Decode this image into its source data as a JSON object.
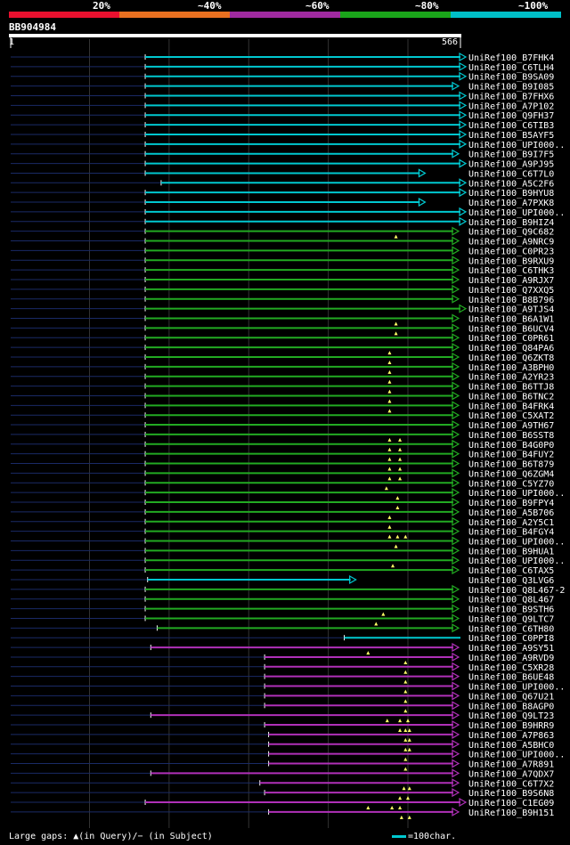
{
  "query": {
    "id": "BB904984",
    "start": "1",
    "end": "566",
    "length": 566
  },
  "scale": [
    {
      "label": "20%",
      "color": "#e8102e"
    },
    {
      "label": "~40%",
      "color": "#e87020"
    },
    {
      "label": "~60%",
      "color": "#a02aa0"
    },
    {
      "label": "~80%",
      "color": "#1aa51a"
    },
    {
      "label": "~100%",
      "color": "#00c0c8"
    }
  ],
  "footer": {
    "gaps_text": "Large gaps: ▲(in Query)/− (in Subject)",
    "scale_text": "=100char."
  },
  "chart_data": {
    "type": "alignment",
    "x_range": [
      1,
      566
    ],
    "hits": [
      {
        "name": "UniRef100_B7FHK4",
        "start": 170,
        "end": 566,
        "cls": "c",
        "arrow": true
      },
      {
        "name": "UniRef100_C6TLH4",
        "start": 170,
        "end": 566,
        "cls": "c",
        "arrow": true
      },
      {
        "name": "UniRef100_B9SA09",
        "start": 170,
        "end": 566,
        "cls": "c",
        "arrow": true
      },
      {
        "name": "UniRef100_B9I085",
        "start": 170,
        "end": 557,
        "cls": "c",
        "arrow": true
      },
      {
        "name": "UniRef100_B7FHX6",
        "start": 170,
        "end": 566,
        "cls": "c",
        "arrow": true
      },
      {
        "name": "UniRef100_A7P102",
        "start": 170,
        "end": 566,
        "cls": "c",
        "arrow": true
      },
      {
        "name": "UniRef100_Q9FH37",
        "start": 170,
        "end": 566,
        "cls": "c",
        "arrow": true
      },
      {
        "name": "UniRef100_C6TIB3",
        "start": 170,
        "end": 566,
        "cls": "c",
        "arrow": true
      },
      {
        "name": "UniRef100_B5AYF5",
        "start": 170,
        "end": 566,
        "cls": "c",
        "arrow": true
      },
      {
        "name": "UniRef100_UPI000..",
        "start": 170,
        "end": 566,
        "cls": "c",
        "arrow": true
      },
      {
        "name": "UniRef100_B9I7F5",
        "start": 170,
        "end": 557,
        "cls": "c",
        "arrow": true
      },
      {
        "name": "UniRef100_A9PJ95",
        "start": 170,
        "end": 566,
        "cls": "c",
        "arrow": true
      },
      {
        "name": "UniRef100_C6T7L0",
        "start": 170,
        "end": 515,
        "cls": "c",
        "arrow": true
      },
      {
        "name": "UniRef100_A5C2F6",
        "start": 190,
        "end": 566,
        "cls": "c",
        "arrow": true
      },
      {
        "name": "UniRef100_B9HYU8",
        "start": 170,
        "end": 566,
        "cls": "c",
        "arrow": true
      },
      {
        "name": "UniRef100_A7PXK8",
        "start": 170,
        "end": 515,
        "cls": "c",
        "arrow": true
      },
      {
        "name": "UniRef100_UPI000..",
        "start": 170,
        "end": 566,
        "cls": "c",
        "arrow": true
      },
      {
        "name": "UniRef100_B9HIZ4",
        "start": 170,
        "end": 566,
        "cls": "c",
        "arrow": true
      },
      {
        "name": "UniRef100_Q9C682",
        "start": 170,
        "end": 557,
        "cls": "g",
        "arrow": true,
        "gaps": [
          485
        ]
      },
      {
        "name": "UniRef100_A9NRC9",
        "start": 170,
        "end": 557,
        "cls": "g",
        "arrow": true
      },
      {
        "name": "UniRef100_C0PR23",
        "start": 170,
        "end": 557,
        "cls": "g",
        "arrow": true
      },
      {
        "name": "UniRef100_B9RXU9",
        "start": 170,
        "end": 557,
        "cls": "g",
        "arrow": true
      },
      {
        "name": "UniRef100_C6THK3",
        "start": 170,
        "end": 557,
        "cls": "g",
        "arrow": true
      },
      {
        "name": "UniRef100_A9RJX7",
        "start": 170,
        "end": 557,
        "cls": "g",
        "arrow": true
      },
      {
        "name": "UniRef100_Q7XXQ5",
        "start": 170,
        "end": 557,
        "cls": "g",
        "arrow": true
      },
      {
        "name": "UniRef100_B8B796",
        "start": 170,
        "end": 557,
        "cls": "g",
        "arrow": true
      },
      {
        "name": "UniRef100_A9TJS4",
        "start": 170,
        "end": 566,
        "cls": "g",
        "arrow": true
      },
      {
        "name": "UniRef100_B6A1W1",
        "start": 170,
        "end": 557,
        "cls": "g",
        "arrow": true,
        "gaps": [
          485
        ]
      },
      {
        "name": "UniRef100_B6UCV4",
        "start": 170,
        "end": 557,
        "cls": "g",
        "arrow": true,
        "gaps": [
          485
        ]
      },
      {
        "name": "UniRef100_C0PR61",
        "start": 170,
        "end": 557,
        "cls": "g",
        "arrow": true
      },
      {
        "name": "UniRef100_Q84PA6",
        "start": 170,
        "end": 557,
        "cls": "g",
        "arrow": true,
        "gaps": [
          477
        ]
      },
      {
        "name": "UniRef100_Q6ZKT8",
        "start": 170,
        "end": 557,
        "cls": "g",
        "arrow": true,
        "gaps": [
          477
        ]
      },
      {
        "name": "UniRef100_A3BPH0",
        "start": 170,
        "end": 557,
        "cls": "g",
        "arrow": true,
        "gaps": [
          477
        ]
      },
      {
        "name": "UniRef100_A2YR23",
        "start": 170,
        "end": 557,
        "cls": "g",
        "arrow": true,
        "gaps": [
          477
        ]
      },
      {
        "name": "UniRef100_B6TTJ8",
        "start": 170,
        "end": 557,
        "cls": "g",
        "arrow": true,
        "gaps": [
          477
        ]
      },
      {
        "name": "UniRef100_B6TNC2",
        "start": 170,
        "end": 557,
        "cls": "g",
        "arrow": true,
        "gaps": [
          477
        ]
      },
      {
        "name": "UniRef100_B4FRK4",
        "start": 170,
        "end": 557,
        "cls": "g",
        "arrow": true,
        "gaps": [
          477
        ]
      },
      {
        "name": "UniRef100_C5XAT2",
        "start": 170,
        "end": 557,
        "cls": "g",
        "arrow": true
      },
      {
        "name": "UniRef100_A9TH67",
        "start": 170,
        "end": 557,
        "cls": "g",
        "arrow": true
      },
      {
        "name": "UniRef100_B6SST8",
        "start": 170,
        "end": 557,
        "cls": "g",
        "arrow": true,
        "gaps": [
          477,
          490
        ]
      },
      {
        "name": "UniRef100_B4G0P0",
        "start": 170,
        "end": 557,
        "cls": "g",
        "arrow": true,
        "gaps": [
          477,
          490
        ]
      },
      {
        "name": "UniRef100_B4FUY2",
        "start": 170,
        "end": 557,
        "cls": "g",
        "arrow": true,
        "gaps": [
          477,
          490
        ]
      },
      {
        "name": "UniRef100_B6T879",
        "start": 170,
        "end": 557,
        "cls": "g",
        "arrow": true,
        "gaps": [
          477,
          490
        ]
      },
      {
        "name": "UniRef100_Q6ZGM4",
        "start": 170,
        "end": 557,
        "cls": "g",
        "arrow": true,
        "gaps": [
          477,
          490
        ]
      },
      {
        "name": "UniRef100_C5YZ70",
        "start": 170,
        "end": 557,
        "cls": "g",
        "arrow": true,
        "gaps": [
          473
        ]
      },
      {
        "name": "UniRef100_UPI000..",
        "start": 170,
        "end": 557,
        "cls": "g",
        "arrow": true,
        "gaps": [
          487
        ]
      },
      {
        "name": "UniRef100_B9FPY4",
        "start": 170,
        "end": 557,
        "cls": "g",
        "arrow": true,
        "gaps": [
          487
        ]
      },
      {
        "name": "UniRef100_A5B706",
        "start": 170,
        "end": 557,
        "cls": "g",
        "arrow": true,
        "gaps": [
          477
        ]
      },
      {
        "name": "UniRef100_A2Y5C1",
        "start": 170,
        "end": 557,
        "cls": "g",
        "arrow": true,
        "gaps": [
          477
        ]
      },
      {
        "name": "UniRef100_B4FGY4",
        "start": 170,
        "end": 557,
        "cls": "g",
        "arrow": true,
        "gaps": [
          477,
          487,
          497
        ]
      },
      {
        "name": "UniRef100_UPI000..",
        "start": 170,
        "end": 557,
        "cls": "g",
        "arrow": true,
        "gaps": [
          485
        ]
      },
      {
        "name": "UniRef100_B9HUA1",
        "start": 170,
        "end": 557,
        "cls": "g",
        "arrow": true
      },
      {
        "name": "UniRef100_UPI000..",
        "start": 170,
        "end": 557,
        "cls": "g",
        "arrow": true,
        "gaps": [
          481
        ]
      },
      {
        "name": "UniRef100_C6TAX5",
        "start": 170,
        "end": 557,
        "cls": "g",
        "arrow": true
      },
      {
        "name": "UniRef100_Q3LVG6",
        "start": 173,
        "end": 428,
        "cls": "c",
        "arrow": true
      },
      {
        "name": "UniRef100_Q8L467-2",
        "start": 170,
        "end": 557,
        "cls": "g",
        "arrow": true
      },
      {
        "name": "UniRef100_Q8L467",
        "start": 170,
        "end": 557,
        "cls": "g",
        "arrow": true
      },
      {
        "name": "UniRef100_B9STH6",
        "start": 170,
        "end": 557,
        "cls": "g",
        "arrow": true,
        "gaps": [
          469
        ]
      },
      {
        "name": "UniRef100_Q9LTC7",
        "start": 170,
        "end": 557,
        "cls": "g",
        "arrow": true,
        "gaps": [
          460
        ]
      },
      {
        "name": "UniRef100_C6TH80",
        "start": 185,
        "end": 557,
        "cls": "g",
        "arrow": true
      },
      {
        "name": "UniRef100_C0PPI8",
        "start": 420,
        "end": 566,
        "cls": "c",
        "arrow": false
      },
      {
        "name": "UniRef100_A9SY51",
        "start": 177,
        "end": 557,
        "cls": "p",
        "arrow": true,
        "gaps": [
          450
        ]
      },
      {
        "name": "UniRef100_A9RVD9",
        "start": 320,
        "end": 557,
        "cls": "p",
        "arrow": true,
        "gaps": [
          497
        ]
      },
      {
        "name": "UniRef100_C5XR28",
        "start": 320,
        "end": 557,
        "cls": "p",
        "arrow": true,
        "gaps": [
          497
        ]
      },
      {
        "name": "UniRef100_B6UE48",
        "start": 320,
        "end": 557,
        "cls": "p",
        "arrow": true,
        "gaps": [
          497
        ]
      },
      {
        "name": "UniRef100_UPI000..",
        "start": 320,
        "end": 557,
        "cls": "p",
        "arrow": true,
        "gaps": [
          497
        ]
      },
      {
        "name": "UniRef100_Q67U21",
        "start": 320,
        "end": 557,
        "cls": "p",
        "arrow": true,
        "gaps": [
          497
        ]
      },
      {
        "name": "UniRef100_B8AGP0",
        "start": 320,
        "end": 557,
        "cls": "p",
        "arrow": true,
        "gaps": [
          497
        ]
      },
      {
        "name": "UniRef100_Q9LT23",
        "start": 177,
        "end": 557,
        "cls": "p",
        "arrow": true,
        "gaps": [
          474,
          490,
          500
        ]
      },
      {
        "name": "UniRef100_B9HRR9",
        "start": 320,
        "end": 557,
        "cls": "p",
        "arrow": true,
        "gaps": [
          490,
          497,
          502
        ]
      },
      {
        "name": "UniRef100_A7P863",
        "start": 325,
        "end": 557,
        "cls": "p",
        "arrow": true,
        "gaps": [
          497,
          502
        ]
      },
      {
        "name": "UniRef100_A5BHC0",
        "start": 325,
        "end": 557,
        "cls": "p",
        "arrow": true,
        "gaps": [
          497,
          502
        ]
      },
      {
        "name": "UniRef100_UPI000..",
        "start": 325,
        "end": 557,
        "cls": "p",
        "arrow": true,
        "gaps": [
          497
        ]
      },
      {
        "name": "UniRef100_A7R891",
        "start": 325,
        "end": 557,
        "cls": "p",
        "arrow": true,
        "gaps": [
          497
        ]
      },
      {
        "name": "UniRef100_A7QDX7",
        "start": 177,
        "end": 557,
        "cls": "p",
        "arrow": true
      },
      {
        "name": "UniRef100_C6T7X2",
        "start": 314,
        "end": 557,
        "cls": "p",
        "arrow": true,
        "gaps": [
          495,
          502
        ]
      },
      {
        "name": "UniRef100_B9S6N8",
        "start": 320,
        "end": 557,
        "cls": "p",
        "arrow": true,
        "gaps": [
          490,
          500
        ]
      },
      {
        "name": "UniRef100_C1EG09",
        "start": 170,
        "end": 566,
        "cls": "p",
        "arrow": true,
        "gaps": [
          450,
          480,
          490
        ]
      },
      {
        "name": "UniRef100_B9H151",
        "start": 325,
        "end": 557,
        "cls": "p",
        "arrow": true,
        "gaps": [
          492,
          502
        ]
      }
    ]
  }
}
